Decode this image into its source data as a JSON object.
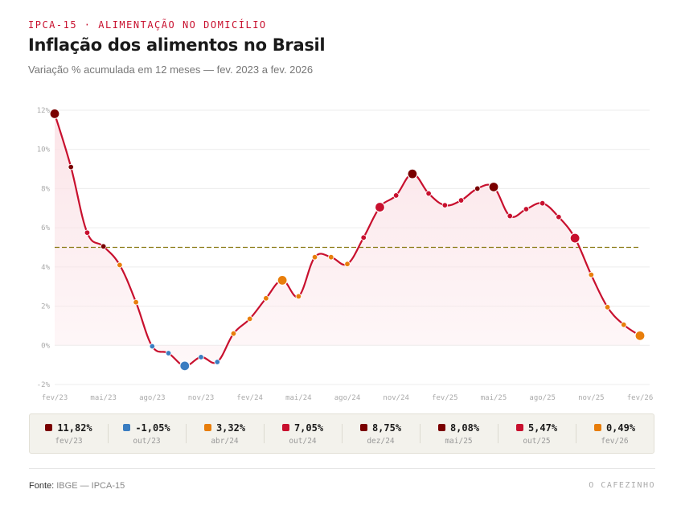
{
  "header": {
    "kicker": "IPCA-15 · ALIMENTAÇÃO NO DOMICÍLIO",
    "title": "Inflação dos alimentos no Brasil",
    "subtitle": "Variação % acumulada em 12 meses — fev. 2023 a fev. 2026"
  },
  "colors": {
    "line": "#c8102e",
    "dark_red": "#7a0000",
    "red": "#c8102e",
    "blue": "#3a7dc1",
    "orange": "#e87e0b",
    "reference": "#8a7a14",
    "fill": "#fbe3e7"
  },
  "chart_data": {
    "type": "line",
    "title": "Inflação dos alimentos no Brasil",
    "ylabel": "Variação % acumulada em 12 meses",
    "ylim": [
      -2,
      12
    ],
    "y_ticks": [
      "12%",
      "10%",
      "8%",
      "6%",
      "4%",
      "2%",
      "0%",
      "-2%"
    ],
    "y_tick_values": [
      12,
      10,
      8,
      6,
      4,
      2,
      0,
      -2
    ],
    "x_ticks": [
      {
        "label": "fev/23",
        "index": 0
      },
      {
        "label": "mai/23",
        "index": 3
      },
      {
        "label": "ago/23",
        "index": 6
      },
      {
        "label": "nov/23",
        "index": 9
      },
      {
        "label": "fev/24",
        "index": 12
      },
      {
        "label": "mai/24",
        "index": 15
      },
      {
        "label": "ago/24",
        "index": 18
      },
      {
        "label": "nov/24",
        "index": 21
      },
      {
        "label": "fev/25",
        "index": 24
      },
      {
        "label": "mai/25",
        "index": 27
      },
      {
        "label": "ago/25",
        "index": 30
      },
      {
        "label": "nov/25",
        "index": 33
      },
      {
        "label": "fev/26",
        "index": 36
      }
    ],
    "reference_line": 5.0,
    "series": [
      {
        "name": "IPCA-15 alimentação no domicílio",
        "values": [
          11.82,
          9.1,
          5.75,
          5.05,
          4.1,
          2.2,
          -0.05,
          -0.4,
          -1.05,
          -0.6,
          -0.85,
          0.6,
          1.35,
          2.4,
          3.32,
          2.5,
          4.5,
          4.5,
          4.15,
          5.5,
          7.05,
          7.65,
          8.75,
          7.75,
          7.15,
          7.4,
          8.0,
          8.08,
          6.6,
          6.95,
          7.25,
          6.55,
          5.47,
          3.6,
          1.95,
          1.05,
          0.49
        ],
        "point_colors": [
          "dark_red",
          "dark_red",
          "red",
          "dark_red",
          "orange",
          "orange",
          "blue",
          "blue",
          "blue",
          "blue",
          "blue",
          "orange",
          "orange",
          "orange",
          "orange",
          "orange",
          "orange",
          "orange",
          "orange",
          "red",
          "red",
          "red",
          "dark_red",
          "red",
          "red",
          "red",
          "dark_red",
          "dark_red",
          "red",
          "red",
          "red",
          "red",
          "red",
          "orange",
          "orange",
          "orange",
          "orange"
        ],
        "highlight_indices": [
          0,
          8,
          14,
          20,
          22,
          27,
          32,
          36
        ]
      }
    ]
  },
  "summary": [
    {
      "value": "11,82%",
      "date": "fev/23",
      "color": "#7a0000"
    },
    {
      "value": "-1,05%",
      "date": "out/23",
      "color": "#3a7dc1"
    },
    {
      "value": "3,32%",
      "date": "abr/24",
      "color": "#e87e0b"
    },
    {
      "value": "7,05%",
      "date": "out/24",
      "color": "#c8102e"
    },
    {
      "value": "8,75%",
      "date": "dez/24",
      "color": "#7a0000"
    },
    {
      "value": "8,08%",
      "date": "mai/25",
      "color": "#7a0000"
    },
    {
      "value": "5,47%",
      "date": "out/25",
      "color": "#c8102e"
    },
    {
      "value": "0,49%",
      "date": "fev/26",
      "color": "#e87e0b"
    }
  ],
  "footer": {
    "source_label": "Fonte:",
    "source_value": "IBGE — IPCA-15",
    "brand": "O CAFEZINHO"
  }
}
